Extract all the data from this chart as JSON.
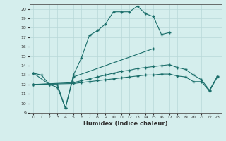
{
  "xlabel": "Humidex (Indice chaleur)",
  "background_color": "#d5eeed",
  "grid_color": "#b8d8d8",
  "line_color": "#1a6e6a",
  "xlim": [
    -0.5,
    23.5
  ],
  "ylim": [
    9,
    20.5
  ],
  "xticks": [
    0,
    1,
    2,
    3,
    4,
    5,
    6,
    7,
    8,
    9,
    10,
    11,
    12,
    13,
    14,
    15,
    16,
    17,
    18,
    19,
    20,
    21,
    22,
    23
  ],
  "yticks": [
    9,
    10,
    11,
    12,
    13,
    14,
    15,
    16,
    17,
    18,
    19,
    20
  ],
  "line1_x": [
    0,
    1,
    2,
    3,
    4,
    5,
    6,
    7,
    8,
    9,
    10,
    11,
    12,
    13,
    14,
    15,
    16,
    17
  ],
  "line1_y": [
    13.2,
    13.0,
    12.0,
    12.0,
    9.5,
    13.0,
    14.8,
    17.2,
    17.7,
    18.4,
    19.7,
    19.7,
    19.7,
    20.3,
    19.5,
    19.2,
    17.3,
    17.5
  ],
  "line2_x": [
    0,
    2,
    3,
    4,
    5,
    15
  ],
  "line2_y": [
    13.2,
    12.0,
    11.7,
    9.5,
    12.8,
    15.8
  ],
  "line3_x": [
    0,
    5,
    6,
    7,
    8,
    9,
    10,
    11,
    12,
    13,
    14,
    15,
    16,
    17,
    18,
    19,
    20,
    21,
    22,
    23
  ],
  "line3_y": [
    12.0,
    12.2,
    12.4,
    12.6,
    12.8,
    13.0,
    13.2,
    13.4,
    13.5,
    13.7,
    13.8,
    13.9,
    14.0,
    14.1,
    13.8,
    13.6,
    13.0,
    12.5,
    11.4,
    12.9
  ],
  "line4_x": [
    0,
    5,
    6,
    7,
    8,
    9,
    10,
    11,
    12,
    13,
    14,
    15,
    16,
    17,
    18,
    19,
    20,
    21,
    22,
    23
  ],
  "line4_y": [
    12.0,
    12.1,
    12.2,
    12.3,
    12.4,
    12.5,
    12.6,
    12.7,
    12.8,
    12.9,
    13.0,
    13.0,
    13.1,
    13.1,
    12.9,
    12.8,
    12.3,
    12.3,
    11.3,
    12.8
  ]
}
